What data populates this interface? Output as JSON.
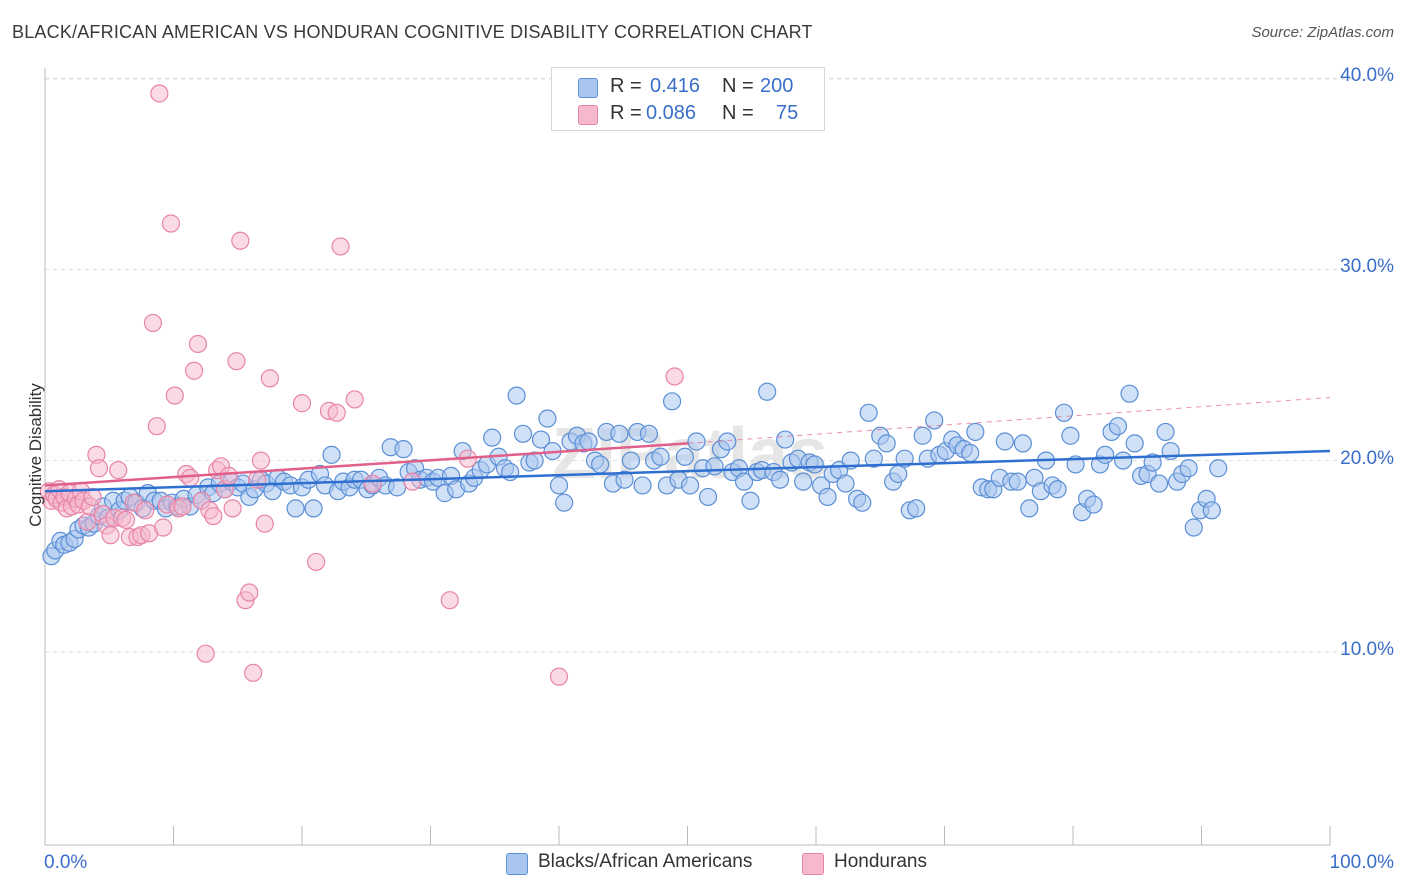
{
  "title": "BLACK/AFRICAN AMERICAN VS HONDURAN COGNITIVE DISABILITY CORRELATION CHART",
  "source": "Source: ZipAtlas.com",
  "watermark": "ZIPatlas",
  "colors": {
    "blue_fill": "#a9c6ef",
    "blue_stroke": "#5b8fd6",
    "blue_line": "#2f6fcf",
    "pink_fill": "#f5b8cc",
    "pink_stroke": "#e884a6",
    "pink_line": "#e0608a",
    "axis_text": "#3a6fc9",
    "grid": "#dddddd"
  },
  "legend_stats": [
    {
      "r_label": "R =",
      "r_value": "0.416",
      "n_label": "N =",
      "n_value": "200",
      "color": "#a9c6ef"
    },
    {
      "r_label": "R =",
      "r_value": "0.086",
      "n_label": "N =",
      "n_value": "75",
      "color": "#f5b8cc"
    }
  ],
  "legend_bottom": [
    {
      "label": "Blacks/African Americans",
      "color": "#a9c6ef"
    },
    {
      "label": "Hondurans",
      "color": "#f5b8cc"
    }
  ],
  "chart_data": {
    "type": "scatter",
    "title": "BLACK/AFRICAN AMERICAN VS HONDURAN COGNITIVE DISABILITY CORRELATION CHART",
    "xlabel": "",
    "ylabel": "Cognitive Disability",
    "xlim": [
      0,
      100
    ],
    "ylim": [
      0,
      41
    ],
    "x_tick_labels": [
      "0.0%",
      "100.0%"
    ],
    "y_ticks": [
      10,
      20,
      30,
      40
    ],
    "y_tick_labels": [
      "10.0%",
      "20.0%",
      "30.0%",
      "40.0%"
    ],
    "grid": true,
    "legend_position": "top-center",
    "series": [
      {
        "name": "Blacks/African Americans",
        "trend": {
          "x": [
            0,
            100
          ],
          "y": [
            18.4,
            20.5
          ]
        },
        "points": [
          [
            0.5,
            15.0
          ],
          [
            0.8,
            15.3
          ],
          [
            1.2,
            15.8
          ],
          [
            1.5,
            15.6
          ],
          [
            1.9,
            15.7
          ],
          [
            2.3,
            15.9
          ],
          [
            2.6,
            16.4
          ],
          [
            3.0,
            16.6
          ],
          [
            3.4,
            16.5
          ],
          [
            3.8,
            16.7
          ],
          [
            4.2,
            17.1
          ],
          [
            4.5,
            17.6
          ],
          [
            4.9,
            17.0
          ],
          [
            5.3,
            17.9
          ],
          [
            5.8,
            17.4
          ],
          [
            6.2,
            17.9
          ],
          [
            6.6,
            18.1
          ],
          [
            7.1,
            17.8
          ],
          [
            7.6,
            17.5
          ],
          [
            8.0,
            18.3
          ],
          [
            8.5,
            17.9
          ],
          [
            9.0,
            17.9
          ],
          [
            9.4,
            17.5
          ],
          [
            9.9,
            17.8
          ],
          [
            10.3,
            17.6
          ],
          [
            10.8,
            18.0
          ],
          [
            11.3,
            17.6
          ],
          [
            11.8,
            18.2
          ],
          [
            12.2,
            17.9
          ],
          [
            12.7,
            18.6
          ],
          [
            13.1,
            18.3
          ],
          [
            13.6,
            18.8
          ],
          [
            14.0,
            18.5
          ],
          [
            14.5,
            18.9
          ],
          [
            15.0,
            18.6
          ],
          [
            15.4,
            18.8
          ],
          [
            15.9,
            18.1
          ],
          [
            16.3,
            18.5
          ],
          [
            16.8,
            19.0
          ],
          [
            17.2,
            18.8
          ],
          [
            17.7,
            18.4
          ],
          [
            18.1,
            19.1
          ],
          [
            18.6,
            18.9
          ],
          [
            19.1,
            18.7
          ],
          [
            19.5,
            17.5
          ],
          [
            20.0,
            18.6
          ],
          [
            20.5,
            19.0
          ],
          [
            20.9,
            17.5
          ],
          [
            21.4,
            19.3
          ],
          [
            21.8,
            18.7
          ],
          [
            22.3,
            20.3
          ],
          [
            22.8,
            18.4
          ],
          [
            23.2,
            18.9
          ],
          [
            23.7,
            18.6
          ],
          [
            24.1,
            19.0
          ],
          [
            24.6,
            19.0
          ],
          [
            25.1,
            18.5
          ],
          [
            25.5,
            18.7
          ],
          [
            26.0,
            19.1
          ],
          [
            26.5,
            18.7
          ],
          [
            26.9,
            20.7
          ],
          [
            27.4,
            18.6
          ],
          [
            27.9,
            20.6
          ],
          [
            28.3,
            19.4
          ],
          [
            28.8,
            19.6
          ],
          [
            29.2,
            19.0
          ],
          [
            29.7,
            19.1
          ],
          [
            30.2,
            18.9
          ],
          [
            30.6,
            19.1
          ],
          [
            31.1,
            18.3
          ],
          [
            31.6,
            19.2
          ],
          [
            32.0,
            18.5
          ],
          [
            32.5,
            20.5
          ],
          [
            33.0,
            18.8
          ],
          [
            33.4,
            19.1
          ],
          [
            33.9,
            19.5
          ],
          [
            34.4,
            19.8
          ],
          [
            34.8,
            21.2
          ],
          [
            35.3,
            20.2
          ],
          [
            35.8,
            19.6
          ],
          [
            36.2,
            19.4
          ],
          [
            36.7,
            23.4
          ],
          [
            37.2,
            21.4
          ],
          [
            37.7,
            19.9
          ],
          [
            38.1,
            20.0
          ],
          [
            38.6,
            21.1
          ],
          [
            39.1,
            22.2
          ],
          [
            39.5,
            20.5
          ],
          [
            40.0,
            18.7
          ],
          [
            40.4,
            17.8
          ],
          [
            40.9,
            21.0
          ],
          [
            41.4,
            21.3
          ],
          [
            41.9,
            20.9
          ],
          [
            42.3,
            21.0
          ],
          [
            42.8,
            20.0
          ],
          [
            43.2,
            19.8
          ],
          [
            43.7,
            21.5
          ],
          [
            44.2,
            18.8
          ],
          [
            44.7,
            21.4
          ],
          [
            45.1,
            19.0
          ],
          [
            45.6,
            20.0
          ],
          [
            46.1,
            21.5
          ],
          [
            46.5,
            18.7
          ],
          [
            47.0,
            21.4
          ],
          [
            47.4,
            20.0
          ],
          [
            47.9,
            20.2
          ],
          [
            48.4,
            18.7
          ],
          [
            48.8,
            23.1
          ],
          [
            49.3,
            19.0
          ],
          [
            49.8,
            20.2
          ],
          [
            50.2,
            18.7
          ],
          [
            50.7,
            21.0
          ],
          [
            51.2,
            19.6
          ],
          [
            51.6,
            18.1
          ],
          [
            52.1,
            19.7
          ],
          [
            52.6,
            20.6
          ],
          [
            53.1,
            21.0
          ],
          [
            53.5,
            19.4
          ],
          [
            54.0,
            19.6
          ],
          [
            54.4,
            18.9
          ],
          [
            54.9,
            17.9
          ],
          [
            55.4,
            19.4
          ],
          [
            55.8,
            19.5
          ],
          [
            56.2,
            23.6
          ],
          [
            56.7,
            19.4
          ],
          [
            57.2,
            19.0
          ],
          [
            57.6,
            21.1
          ],
          [
            58.1,
            19.9
          ],
          [
            58.6,
            20.1
          ],
          [
            59.0,
            18.9
          ],
          [
            59.5,
            19.9
          ],
          [
            59.9,
            19.8
          ],
          [
            60.4,
            18.7
          ],
          [
            60.9,
            18.1
          ],
          [
            61.3,
            19.3
          ],
          [
            61.8,
            19.5
          ],
          [
            62.3,
            18.8
          ],
          [
            62.7,
            20.0
          ],
          [
            63.2,
            18.0
          ],
          [
            63.6,
            17.8
          ],
          [
            64.1,
            22.5
          ],
          [
            64.5,
            20.1
          ],
          [
            65.0,
            21.3
          ],
          [
            65.5,
            20.9
          ],
          [
            66.0,
            18.9
          ],
          [
            66.4,
            19.3
          ],
          [
            66.9,
            20.1
          ],
          [
            67.3,
            17.4
          ],
          [
            67.8,
            17.5
          ],
          [
            68.3,
            21.3
          ],
          [
            68.7,
            20.1
          ],
          [
            69.2,
            22.1
          ],
          [
            69.6,
            20.3
          ],
          [
            70.1,
            20.5
          ],
          [
            70.6,
            21.1
          ],
          [
            71.0,
            20.8
          ],
          [
            71.5,
            20.6
          ],
          [
            72.0,
            20.4
          ],
          [
            72.4,
            21.5
          ],
          [
            72.9,
            18.6
          ],
          [
            73.4,
            18.5
          ],
          [
            73.8,
            18.5
          ],
          [
            74.3,
            19.1
          ],
          [
            74.7,
            21.0
          ],
          [
            75.2,
            18.9
          ],
          [
            75.7,
            18.9
          ],
          [
            76.1,
            20.9
          ],
          [
            76.6,
            17.5
          ],
          [
            77.0,
            19.1
          ],
          [
            77.5,
            18.4
          ],
          [
            77.9,
            20.0
          ],
          [
            78.4,
            18.7
          ],
          [
            78.8,
            18.5
          ],
          [
            79.3,
            22.5
          ],
          [
            79.8,
            21.3
          ],
          [
            80.2,
            19.8
          ],
          [
            80.7,
            17.3
          ],
          [
            81.1,
            18.0
          ],
          [
            81.6,
            17.7
          ],
          [
            82.1,
            19.8
          ],
          [
            82.5,
            20.3
          ],
          [
            83.0,
            21.5
          ],
          [
            83.5,
            21.8
          ],
          [
            83.9,
            20.0
          ],
          [
            84.4,
            23.5
          ],
          [
            84.8,
            20.9
          ],
          [
            85.3,
            19.2
          ],
          [
            85.8,
            19.3
          ],
          [
            86.2,
            19.9
          ],
          [
            86.7,
            18.8
          ],
          [
            87.2,
            21.5
          ],
          [
            87.6,
            20.5
          ],
          [
            88.1,
            18.9
          ],
          [
            88.5,
            19.3
          ],
          [
            89.0,
            19.6
          ],
          [
            89.4,
            16.5
          ],
          [
            89.9,
            17.4
          ],
          [
            90.4,
            18.0
          ],
          [
            90.8,
            17.4
          ],
          [
            91.3,
            19.6
          ]
        ]
      },
      {
        "name": "Hondurans",
        "trend": {
          "x": [
            0,
            50
          ],
          "y": [
            18.7,
            20.9
          ]
        },
        "trend_dashed": {
          "x": [
            50,
            100
          ],
          "y": [
            20.9,
            23.3
          ]
        },
        "points": [
          [
            0.3,
            18.4
          ],
          [
            0.5,
            17.9
          ],
          [
            0.7,
            18.2
          ],
          [
            0.9,
            18.0
          ],
          [
            1.1,
            18.5
          ],
          [
            1.3,
            17.8
          ],
          [
            1.5,
            18.1
          ],
          [
            1.7,
            17.5
          ],
          [
            1.9,
            18.3
          ],
          [
            2.1,
            17.6
          ],
          [
            2.4,
            18.0
          ],
          [
            2.6,
            17.7
          ],
          [
            2.8,
            18.4
          ],
          [
            3.0,
            17.9
          ],
          [
            3.3,
            16.8
          ],
          [
            3.5,
            17.6
          ],
          [
            3.7,
            18.1
          ],
          [
            4.0,
            20.3
          ],
          [
            4.2,
            19.6
          ],
          [
            4.5,
            17.2
          ],
          [
            4.8,
            16.6
          ],
          [
            5.1,
            16.1
          ],
          [
            5.4,
            17.0
          ],
          [
            5.7,
            19.5
          ],
          [
            6.0,
            17.0
          ],
          [
            6.3,
            16.9
          ],
          [
            6.6,
            16.0
          ],
          [
            6.9,
            17.8
          ],
          [
            7.2,
            16.0
          ],
          [
            7.5,
            16.1
          ],
          [
            7.8,
            17.4
          ],
          [
            8.1,
            16.2
          ],
          [
            8.4,
            27.2
          ],
          [
            8.7,
            21.8
          ],
          [
            8.9,
            39.2
          ],
          [
            9.2,
            16.5
          ],
          [
            9.5,
            17.7
          ],
          [
            9.8,
            32.4
          ],
          [
            10.1,
            23.4
          ],
          [
            10.4,
            17.5
          ],
          [
            10.7,
            17.6
          ],
          [
            11.0,
            19.3
          ],
          [
            11.3,
            19.1
          ],
          [
            11.6,
            24.7
          ],
          [
            11.9,
            26.1
          ],
          [
            12.2,
            17.9
          ],
          [
            12.5,
            9.9
          ],
          [
            12.8,
            17.4
          ],
          [
            13.1,
            17.1
          ],
          [
            13.4,
            19.5
          ],
          [
            13.7,
            19.7
          ],
          [
            14.0,
            18.5
          ],
          [
            14.3,
            19.2
          ],
          [
            14.6,
            17.5
          ],
          [
            14.9,
            25.2
          ],
          [
            15.2,
            31.5
          ],
          [
            15.6,
            12.7
          ],
          [
            15.9,
            13.1
          ],
          [
            16.2,
            8.9
          ],
          [
            16.5,
            19.0
          ],
          [
            16.8,
            20.0
          ],
          [
            17.1,
            16.7
          ],
          [
            17.5,
            24.3
          ],
          [
            20.0,
            23.0
          ],
          [
            21.1,
            14.7
          ],
          [
            22.1,
            22.6
          ],
          [
            22.7,
            22.5
          ],
          [
            23.0,
            31.2
          ],
          [
            24.1,
            23.2
          ],
          [
            25.5,
            18.8
          ],
          [
            28.6,
            18.9
          ],
          [
            31.5,
            12.7
          ],
          [
            32.9,
            20.1
          ],
          [
            40.0,
            8.7
          ],
          [
            49.0,
            24.4
          ]
        ]
      }
    ]
  }
}
